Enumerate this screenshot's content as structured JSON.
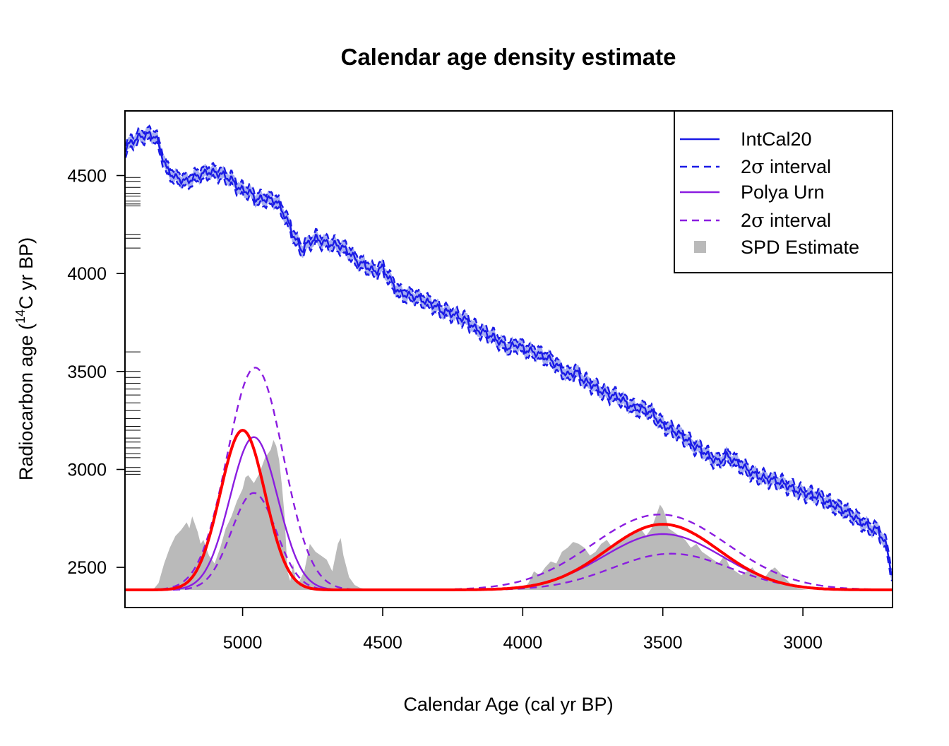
{
  "colors": {
    "intcal": "#1a1ae6",
    "intcal_band": "#a5aef0",
    "polya": "#8b1de0",
    "spd": "#bababa",
    "red": "#ff0000"
  },
  "chart_data": {
    "type": "line",
    "title": "Calendar age density estimate",
    "xlabel": "Calendar Age (cal yr BP)",
    "ylabel_main": "Radiocarbon age (",
    "ylabel_sup": "14",
    "ylabel_rest": "C yr BP)",
    "x_reversed": true,
    "xlim": [
      5420,
      2680
    ],
    "ylim": [
      2295,
      4830
    ],
    "x_ticks": [
      5000,
      4500,
      4000,
      3500,
      3000
    ],
    "x_tick_labels": [
      "5000",
      "4500",
      "4000",
      "3500",
      "3000"
    ],
    "y_ticks": [
      2500,
      3000,
      3500,
      4000,
      4500
    ],
    "y_tick_labels": [
      "2500",
      "3000",
      "3500",
      "4000",
      "4500"
    ],
    "density_baseline": 2385,
    "legend": {
      "position": "top-right",
      "entries": [
        {
          "label": "IntCal20",
          "style": "solid",
          "color_key": "intcal"
        },
        {
          "label_prefix": "2",
          "label_symbol": "σ",
          "label_suffix": " interval",
          "style": "dashed",
          "color_key": "intcal"
        },
        {
          "label": "Polya Urn",
          "style": "solid",
          "color_key": "polya"
        },
        {
          "label_prefix": "2",
          "label_symbol": "σ",
          "label_suffix": " interval",
          "style": "dashed",
          "color_key": "polya"
        },
        {
          "label": "SPD Estimate",
          "style": "square",
          "color_key": "spd"
        }
      ]
    },
    "intcal_curve": {
      "x": [
        5420,
        5380,
        5340,
        5310,
        5270,
        5240,
        5200,
        5160,
        5120,
        5080,
        5040,
        5010,
        4980,
        4950,
        4910,
        4880,
        4850,
        4820,
        4790,
        4770,
        4740,
        4710,
        4680,
        4650,
        4620,
        4590,
        4560,
        4530,
        4500,
        4470,
        4440,
        4410,
        4380,
        4350,
        4320,
        4290,
        4260,
        4230,
        4200,
        4170,
        4140,
        4110,
        4080,
        4050,
        4020,
        3990,
        3960,
        3930,
        3900,
        3870,
        3840,
        3810,
        3780,
        3750,
        3720,
        3690,
        3660,
        3630,
        3600,
        3570,
        3540,
        3510,
        3480,
        3450,
        3420,
        3390,
        3360,
        3330,
        3300,
        3270,
        3240,
        3210,
        3180,
        3150,
        3120,
        3090,
        3060,
        3030,
        3000,
        2970,
        2940,
        2910,
        2880,
        2850,
        2820,
        2790,
        2760,
        2730,
        2700,
        2680
      ],
      "y": [
        4640,
        4690,
        4710,
        4700,
        4530,
        4490,
        4470,
        4500,
        4520,
        4510,
        4480,
        4430,
        4420,
        4380,
        4380,
        4370,
        4300,
        4200,
        4120,
        4150,
        4180,
        4160,
        4150,
        4140,
        4110,
        4060,
        4040,
        4010,
        4030,
        3960,
        3900,
        3890,
        3880,
        3860,
        3840,
        3810,
        3800,
        3780,
        3760,
        3720,
        3700,
        3680,
        3650,
        3620,
        3640,
        3610,
        3600,
        3580,
        3560,
        3520,
        3480,
        3500,
        3450,
        3430,
        3400,
        3380,
        3370,
        3340,
        3310,
        3310,
        3290,
        3240,
        3210,
        3190,
        3160,
        3120,
        3100,
        3060,
        3040,
        3070,
        3040,
        3010,
        2980,
        2960,
        2950,
        2940,
        2920,
        2900,
        2880,
        2870,
        2860,
        2830,
        2810,
        2790,
        2760,
        2730,
        2700,
        2690,
        2600,
        2450
      ],
      "half_width": 30
    },
    "spd_estimate": {
      "x": [
        5320,
        5300,
        5280,
        5260,
        5240,
        5220,
        5200,
        5190,
        5180,
        5160,
        5150,
        5140,
        5120,
        5100,
        5080,
        5060,
        5040,
        5020,
        5000,
        4990,
        4980,
        4970,
        4960,
        4940,
        4920,
        4900,
        4890,
        4880,
        4870,
        4860,
        4850,
        4840,
        4830,
        4820,
        4810,
        4800,
        4780,
        4760,
        4740,
        4720,
        4700,
        4680,
        4660,
        4650,
        4640,
        4620,
        4600,
        4580,
        4560,
        4540,
        4520,
        4500,
        4400,
        4300,
        4200,
        4100,
        4050,
        4000,
        3980,
        3960,
        3940,
        3920,
        3900,
        3880,
        3860,
        3840,
        3820,
        3800,
        3780,
        3760,
        3740,
        3720,
        3700,
        3680,
        3660,
        3640,
        3620,
        3600,
        3580,
        3560,
        3540,
        3520,
        3510,
        3500,
        3490,
        3480,
        3460,
        3440,
        3420,
        3400,
        3380,
        3360,
        3340,
        3320,
        3300,
        3280,
        3260,
        3240,
        3220,
        3200,
        3180,
        3160,
        3140,
        3120,
        3100,
        3080,
        3060,
        3040,
        3020,
        3000,
        2980
      ],
      "y": [
        2385,
        2420,
        2520,
        2600,
        2660,
        2690,
        2730,
        2700,
        2760,
        2680,
        2620,
        2640,
        2560,
        2520,
        2600,
        2700,
        2760,
        2840,
        2900,
        2960,
        2970,
        2950,
        2930,
        2980,
        3060,
        3100,
        3150,
        3120,
        3050,
        2920,
        2760,
        2480,
        2430,
        2520,
        2440,
        2420,
        2480,
        2620,
        2580,
        2560,
        2540,
        2480,
        2620,
        2650,
        2560,
        2450,
        2410,
        2395,
        2390,
        2388,
        2386,
        2385,
        2385,
        2385,
        2385,
        2385,
        2386,
        2390,
        2420,
        2480,
        2460,
        2500,
        2530,
        2520,
        2580,
        2600,
        2630,
        2620,
        2600,
        2560,
        2580,
        2620,
        2640,
        2600,
        2620,
        2640,
        2660,
        2680,
        2700,
        2660,
        2700,
        2780,
        2820,
        2800,
        2760,
        2700,
        2680,
        2660,
        2640,
        2600,
        2620,
        2580,
        2560,
        2540,
        2520,
        2560,
        2500,
        2480,
        2460,
        2480,
        2500,
        2460,
        2440,
        2480,
        2500,
        2470,
        2440,
        2410,
        2395,
        2388,
        2385
      ]
    },
    "polya_urn": {
      "components": [
        {
          "mu": 4960,
          "sigma": 85,
          "amp": 780
        },
        {
          "mu": 3500,
          "sigma": 210,
          "amp": 285
        }
      ]
    },
    "polya_lower": {
      "components": [
        {
          "mu": 4960,
          "sigma": 80,
          "amp": 495
        },
        {
          "mu": 3470,
          "sigma": 210,
          "amp": 185
        }
      ]
    },
    "polya_upper": {
      "components": [
        {
          "mu": 4955,
          "sigma": 100,
          "amp": 1135
        },
        {
          "mu": 3510,
          "sigma": 240,
          "amp": 385
        }
      ]
    },
    "true_density": {
      "components": [
        {
          "mu": 5000,
          "sigma": 80,
          "amp": 815
        },
        {
          "mu": 3500,
          "sigma": 200,
          "amp": 335
        }
      ]
    }
  }
}
